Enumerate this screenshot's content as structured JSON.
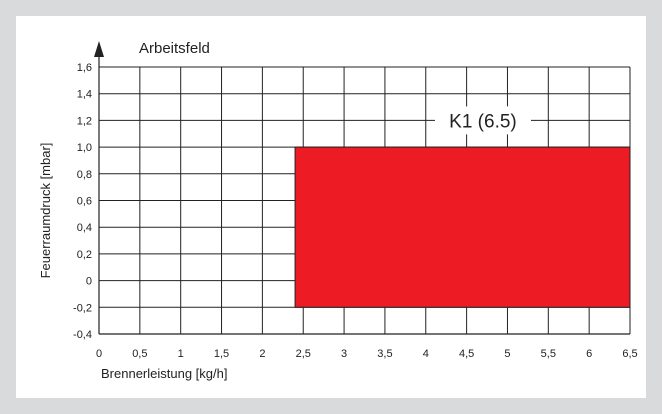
{
  "chart_data": {
    "type": "area",
    "title": "Arbeitsfeld",
    "xlabel": "Brennerleistung [kg/h]",
    "ylabel": "Feuerraumdruck [mbar]",
    "xlim": [
      0,
      6.5
    ],
    "ylim": [
      -0.4,
      1.6
    ],
    "x_ticks": [
      0,
      0.5,
      1,
      1.5,
      2,
      2.5,
      3,
      3.5,
      4,
      4.5,
      5,
      5.5,
      6,
      6.5
    ],
    "y_ticks": [
      -0.4,
      -0.2,
      0,
      0.2,
      0.4,
      0.6,
      0.8,
      1.0,
      1.2,
      1.4,
      1.6
    ],
    "x_tick_labels": [
      "0",
      "0,5",
      "1",
      "1,5",
      "2",
      "2,5",
      "3",
      "3,5",
      "4",
      "4,5",
      "5",
      "5,5",
      "6",
      "6,5"
    ],
    "y_tick_labels": [
      "-0,4",
      "-0,2",
      "0",
      "0,2",
      "0,4",
      "0,6",
      "0,8",
      "1,0",
      "1,2",
      "1,4",
      "1,6"
    ],
    "grid": true,
    "regions": [
      {
        "name": "K1 (6.5)",
        "x_min": 2.4,
        "x_max": 6.5,
        "y_min": -0.2,
        "y_max": 1.0,
        "color": "#ed1c24",
        "label_at": {
          "x": 4.7,
          "y": 1.2
        }
      }
    ]
  }
}
